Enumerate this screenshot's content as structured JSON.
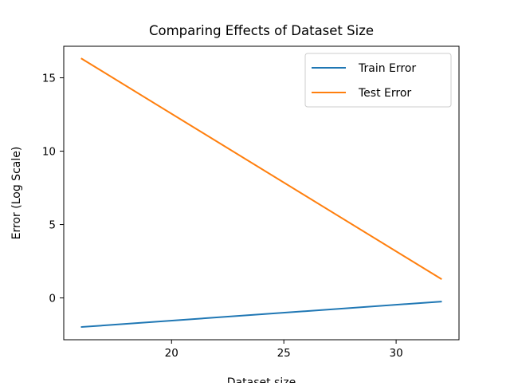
{
  "chart_data": {
    "type": "line",
    "title": "Comparing Effects of Dataset Size",
    "xlabel": "Dataset size",
    "ylabel": "Error (Log Scale)",
    "x": [
      16,
      32
    ],
    "series": [
      {
        "name": "Train Error",
        "color": "#1f77b4",
        "values": [
          -1.98,
          -0.25
        ]
      },
      {
        "name": "Test Error",
        "color": "#ff7f0e",
        "values": [
          16.3,
          1.3
        ]
      }
    ],
    "xlim": [
      15.2,
      32.8
    ],
    "ylim": [
      -2.85,
      17.15
    ],
    "xticks": [
      20,
      25,
      30
    ],
    "yticks": [
      0,
      5,
      10,
      15
    ],
    "grid": false,
    "legend_position": "top-right"
  }
}
